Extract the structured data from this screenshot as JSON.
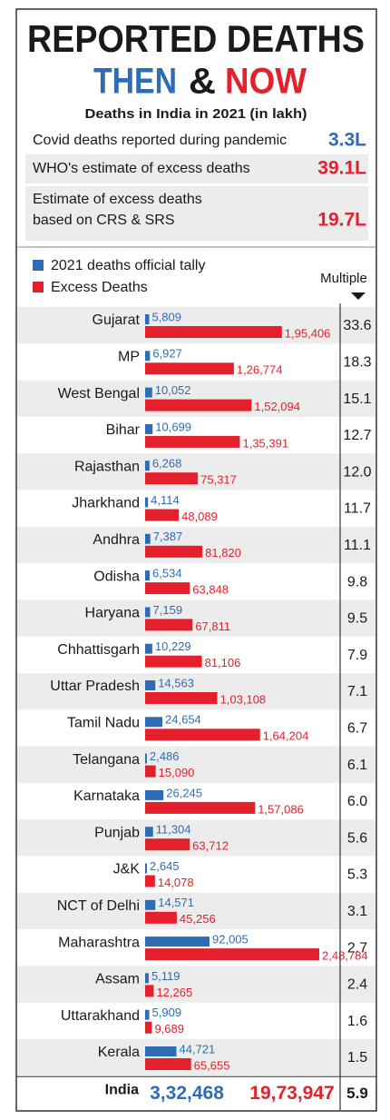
{
  "chart_data": {
    "type": "bar",
    "title": "REPORTED DEATHS",
    "title_line2": [
      {
        "text": "THEN",
        "color": "#2e6db4"
      },
      {
        "text": "&",
        "color": "#1a1a1a"
      },
      {
        "text": "NOW",
        "color": "#e3202b"
      }
    ],
    "table_title": "Deaths in India in 2021 (in lakh)",
    "summary": [
      {
        "label": [
          "Covid deaths reported during pandemic"
        ],
        "value": 3.3,
        "value_label": "3.3L",
        "color": "#2e6db4"
      },
      {
        "label": [
          "WHO's estimate of excess deaths"
        ],
        "value": 39.1,
        "value_label": "39.1L",
        "color": "#e3202b"
      },
      {
        "label": [
          "Estimate of excess deaths",
          "based on CRS & SRS"
        ],
        "value": 19.7,
        "value_label": "19.7L",
        "color": "#e3202b"
      }
    ],
    "categories": [
      "Gujarat",
      "MP",
      "West Bengal",
      "Bihar",
      "Rajasthan",
      "Jharkhand",
      "Andhra",
      "Odisha",
      "Haryana",
      "Chhattisgarh",
      "Uttar Pradesh",
      "Tamil Nadu",
      "Telangana",
      "Karnataka",
      "Punjab",
      "J&K",
      "NCT of Delhi",
      "Maharashtra",
      "Assam",
      "Uttarakhand",
      "Kerala"
    ],
    "series": [
      {
        "name": "2021 deaths official tally",
        "color": "#2e6db4",
        "values": [
          5809,
          6927,
          10052,
          10699,
          6268,
          4114,
          7387,
          6534,
          7159,
          10229,
          14563,
          24654,
          2486,
          26245,
          11304,
          2645,
          14571,
          92005,
          5119,
          5909,
          44721
        ],
        "value_labels": [
          "5,809",
          "6,927",
          "10,052",
          "10,699",
          "6,268",
          "4,114",
          "7,387",
          "6,534",
          "7,159",
          "10,229",
          "14,563",
          "24,654",
          "2,486",
          "26,245",
          "11,304",
          "2,645",
          "14,571",
          "92,005",
          "5,119",
          "5,909",
          "44,721"
        ]
      },
      {
        "name": "Excess Deaths",
        "color": "#e3202b",
        "values": [
          195406,
          126774,
          152094,
          135391,
          75317,
          48089,
          81820,
          63848,
          67811,
          81106,
          103108,
          164204,
          15090,
          157086,
          63712,
          14078,
          45256,
          248784,
          12265,
          9689,
          65655
        ],
        "value_labels": [
          "1,95,406",
          "1,26,774",
          "1,52,094",
          "1,35,391",
          "75,317",
          "48,089",
          "81,820",
          "63,848",
          "67,811",
          "81,106",
          "1,03,108",
          "1,64,204",
          "15,090",
          "1,57,086",
          "63,712",
          "14,078",
          "45,256",
          "2,48,784",
          "12,265",
          "9,689",
          "65,655"
        ]
      }
    ],
    "multiple_header": "Multiple",
    "multiples": [
      "33.6",
      "18.3",
      "15.1",
      "12.7",
      "12.0",
      "11.7",
      "11.1",
      "9.8",
      "9.5",
      "7.9",
      "7.1",
      "6.7",
      "6.1",
      "6.0",
      "5.6",
      "5.3",
      "3.1",
      "2.7",
      "2.4",
      "1.6",
      "1.5"
    ],
    "total": {
      "label": "India",
      "values": [
        332468,
        1973947
      ],
      "value_labels": [
        "3,32,468",
        "19,73,947"
      ],
      "multiple": "5.9"
    }
  }
}
